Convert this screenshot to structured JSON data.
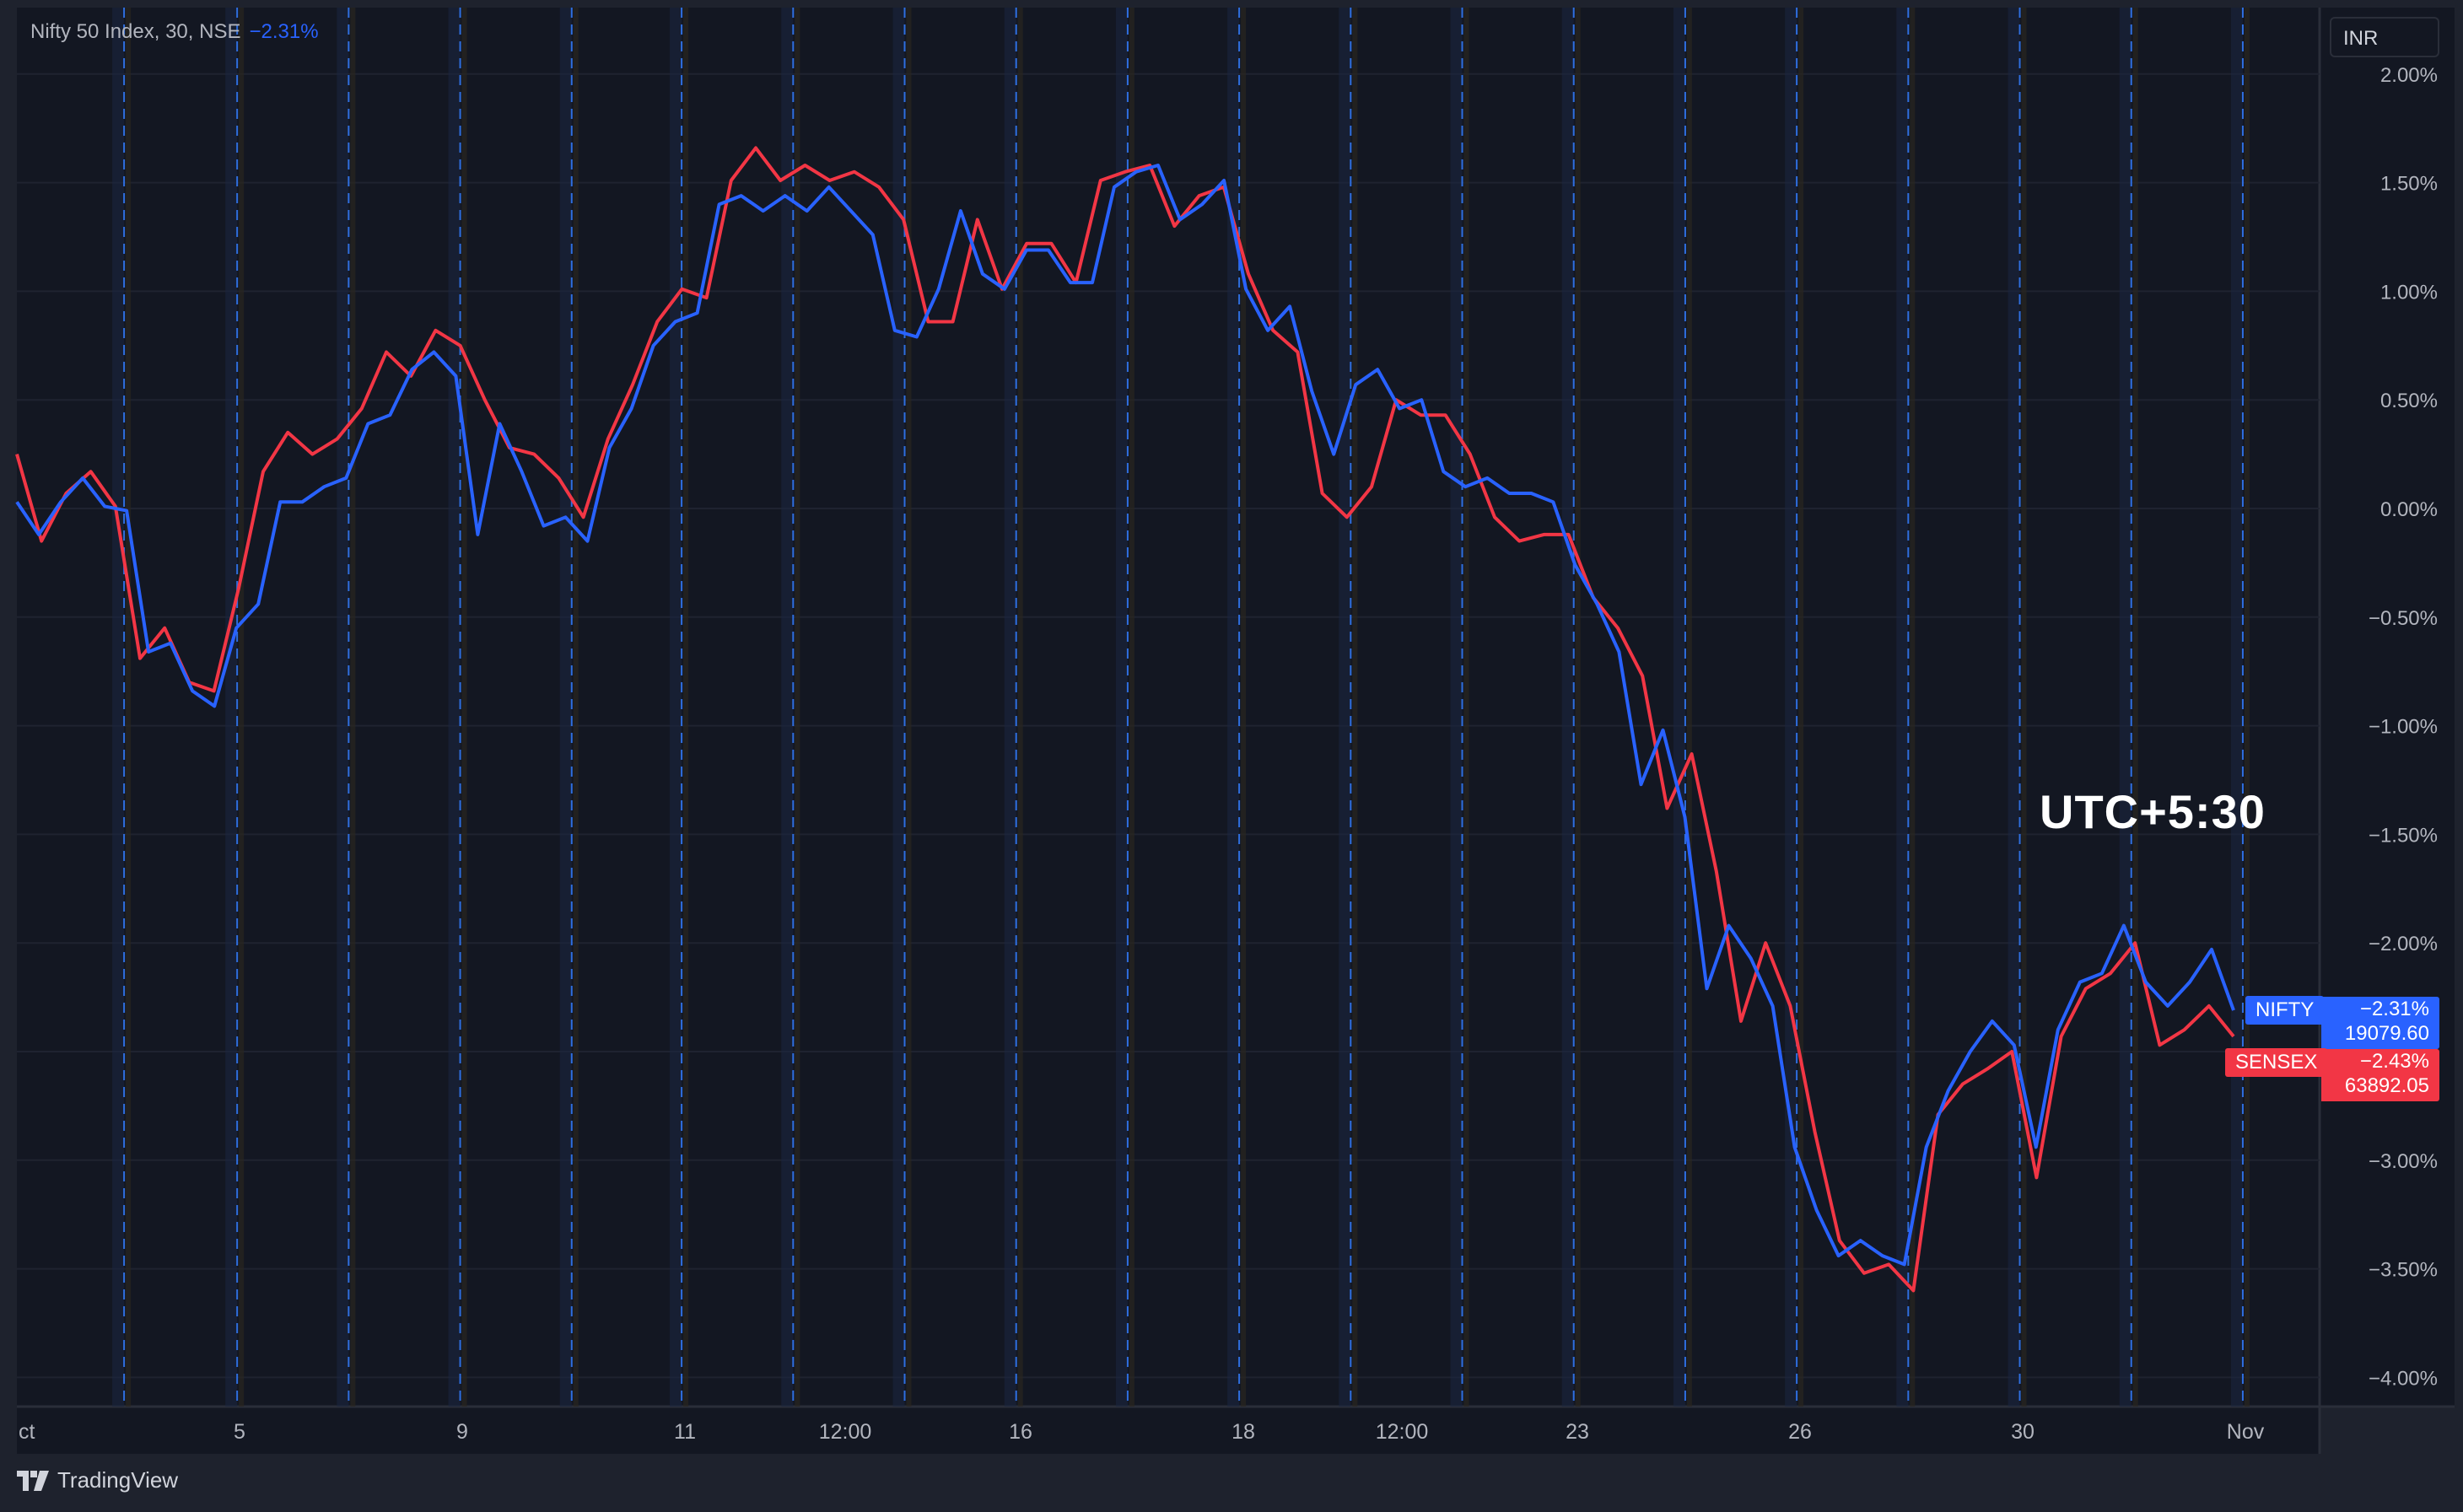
{
  "legend": {
    "symbol": "Nifty 50 Index, 30, NSE",
    "change": "−2.31%"
  },
  "currency": "INR",
  "annotation": "UTC+5:30",
  "branding": {
    "name": "TradingView",
    "icon": "tradingview-logo-icon"
  },
  "colors": {
    "nifty": "#2962ff",
    "sensex": "#f23645",
    "background": "#131722",
    "grid": "#1f2330",
    "session_divider": "#2962ff"
  },
  "tags": {
    "nifty": {
      "label": "NIFTY",
      "change": "−2.31%",
      "price": "19079.60"
    },
    "sensex": {
      "label": "SENSEX",
      "change": "−2.43%",
      "price": "63892.05"
    }
  },
  "chart_data": {
    "type": "line",
    "ylabel": "",
    "xlabel": "",
    "ylim": [
      -4.3,
      2.2
    ],
    "y_ticks": [
      "2.00%",
      "1.50%",
      "1.00%",
      "0.50%",
      "0.00%",
      "−0.50%",
      "−1.00%",
      "−1.50%",
      "−2.00%",
      "−2.50%",
      "−3.00%",
      "−3.50%",
      "−4.00%"
    ],
    "y_tick_values": [
      2,
      1.5,
      1,
      0.5,
      0,
      -0.5,
      -1,
      -1.5,
      -2,
      -2.5,
      -3,
      -3.5,
      -4
    ],
    "x_ticks": [
      "ct",
      "5",
      "9",
      "11",
      "12:00",
      "16",
      "18",
      "12:00",
      "23",
      "26",
      "30",
      "Nov"
    ],
    "grid": true,
    "series": [
      {
        "name": "NIFTY",
        "color": "#2962ff",
        "values": [
          0.03,
          -0.12,
          0.03,
          0.14,
          0.01,
          -0.01,
          -0.66,
          -0.62,
          -0.84,
          -0.91,
          -0.55,
          -0.44,
          0.03,
          0.03,
          0.1,
          0.14,
          0.39,
          0.43,
          0.64,
          0.72,
          0.61,
          -0.12,
          0.39,
          0.17,
          -0.08,
          -0.04,
          -0.15,
          0.28,
          0.46,
          0.75,
          0.86,
          0.9,
          1.4,
          1.44,
          1.37,
          1.44,
          1.37,
          1.48,
          1.37,
          1.26,
          0.82,
          0.79,
          1.01,
          1.37,
          1.08,
          1.01,
          1.19,
          1.19,
          1.04,
          1.04,
          1.48,
          1.55,
          1.58,
          1.33,
          1.4,
          1.51,
          1.01,
          0.82,
          0.93,
          0.54,
          0.25,
          0.57,
          0.64,
          0.46,
          0.5,
          0.17,
          0.1,
          0.14,
          0.07,
          0.07,
          0.03,
          -0.26,
          -0.44,
          -0.66,
          -1.27,
          -1.02,
          -1.42,
          -2.21,
          -1.92,
          -2.07,
          -2.29,
          -2.94,
          -3.23,
          -3.44,
          -3.37,
          -3.44,
          -3.48,
          -2.94,
          -2.68,
          -2.5,
          -2.36,
          -2.47,
          -2.94,
          -2.4,
          -2.18,
          -2.14,
          -1.92,
          -2.18,
          -2.29,
          -2.18,
          -2.03,
          -2.31
        ]
      },
      {
        "name": "SENSEX",
        "color": "#f23645",
        "values": [
          0.25,
          -0.15,
          0.07,
          0.17,
          0.01,
          -0.69,
          -0.55,
          -0.8,
          -0.84,
          -0.37,
          0.17,
          0.35,
          0.25,
          0.32,
          0.46,
          0.72,
          0.61,
          0.82,
          0.75,
          0.5,
          0.28,
          0.25,
          0.14,
          -0.04,
          0.32,
          0.57,
          0.86,
          1.01,
          0.97,
          1.51,
          1.66,
          1.51,
          1.58,
          1.51,
          1.55,
          1.48,
          1.33,
          0.86,
          0.86,
          1.33,
          1.01,
          1.22,
          1.22,
          1.04,
          1.51,
          1.55,
          1.58,
          1.3,
          1.44,
          1.48,
          1.08,
          0.82,
          0.72,
          0.07,
          -0.04,
          0.1,
          0.5,
          0.43,
          0.43,
          0.25,
          -0.04,
          -0.15,
          -0.12,
          -0.12,
          -0.41,
          -0.55,
          -0.77,
          -1.38,
          -1.13,
          -1.67,
          -2.36,
          -2.0,
          -2.29,
          -2.87,
          -3.37,
          -3.52,
          -3.48,
          -3.6,
          -2.79,
          -2.65,
          -2.58,
          -2.5,
          -3.08,
          -2.43,
          -2.21,
          -2.14,
          -2.0,
          -2.47,
          -2.4,
          -2.29,
          -2.43
        ]
      }
    ]
  }
}
